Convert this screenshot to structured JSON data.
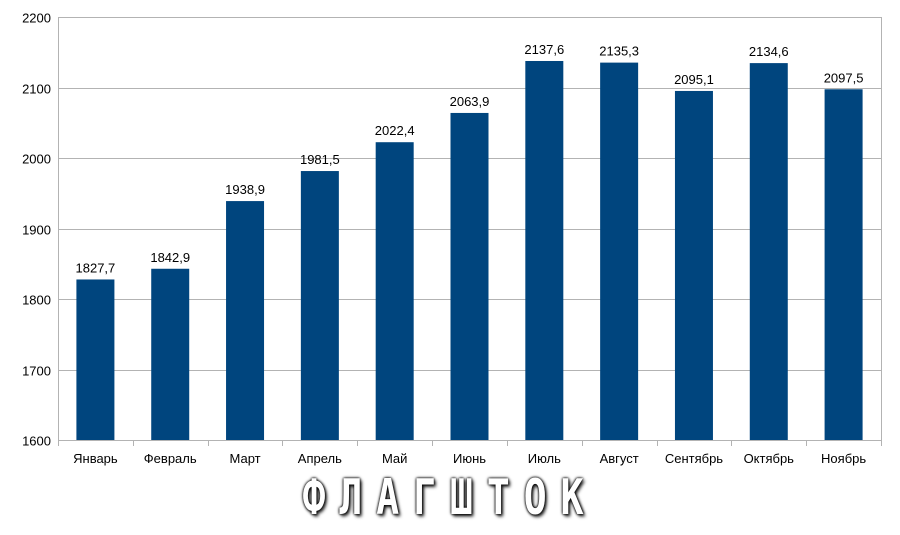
{
  "chart_data": {
    "type": "bar",
    "categories": [
      "Январь",
      "Февраль",
      "Март",
      "Апрель",
      "Май",
      "Июнь",
      "Июль",
      "Август",
      "Сентябрь",
      "Октябрь",
      "Ноябрь"
    ],
    "values": [
      1827.7,
      1842.9,
      1938.9,
      1981.5,
      2022.4,
      2063.9,
      2137.6,
      2135.3,
      2095.1,
      2134.6,
      2097.5
    ],
    "value_labels": [
      "1827,7",
      "1842,9",
      "1938,9",
      "1981,5",
      "2022,4",
      "2063,9",
      "2137,6",
      "2135,3",
      "2095,1",
      "2134,6",
      "2097,5"
    ],
    "title": "",
    "xlabel": "",
    "ylabel": "",
    "ylim": [
      1600,
      2200
    ],
    "yticks": [
      1600,
      1700,
      1800,
      1900,
      2000,
      2100,
      2200
    ],
    "grid": true,
    "bar_color": "#00457e",
    "grid_color": "#b3b3b3"
  },
  "watermark": {
    "text": "ФЛАГШТОК"
  }
}
